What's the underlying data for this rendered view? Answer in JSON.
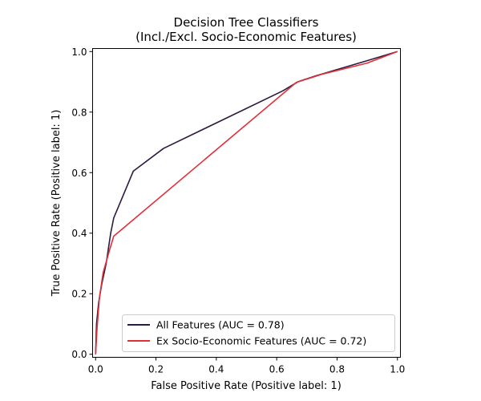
{
  "chart_data": {
    "type": "line",
    "title": "Decision Tree Classifiers",
    "subtitle": "(Incl./Excl. Socio-Economic Features)",
    "xlabel": "False Positive Rate (Positive label: 1)",
    "ylabel": "True Positive Rate (Positive label: 1)",
    "xlim": [
      -0.01,
      1.01
    ],
    "ylim": [
      -0.01,
      1.01
    ],
    "xticks": [
      "0.0",
      "0.2",
      "0.4",
      "0.6",
      "0.8",
      "1.0"
    ],
    "yticks": [
      "0.0",
      "0.2",
      "0.4",
      "0.6",
      "0.8",
      "1.0"
    ],
    "grid": false,
    "legend_position": "lower-right",
    "series": [
      {
        "name": "All Features (AUC = 0.78)",
        "color": "#2d1a40",
        "x": [
          0.0,
          0.003,
          0.01,
          0.02,
          0.035,
          0.05,
          0.06,
          0.125,
          0.225,
          0.62,
          0.67,
          0.73,
          0.9,
          1.0
        ],
        "y": [
          0.0,
          0.1,
          0.17,
          0.23,
          0.3,
          0.4,
          0.45,
          0.605,
          0.68,
          0.87,
          0.9,
          0.92,
          0.97,
          1.0
        ]
      },
      {
        "name": "Ex Socio-Economic Features (AUC = 0.72)",
        "color": "#e0313b",
        "x": [
          0.0,
          0.005,
          0.013,
          0.025,
          0.045,
          0.06,
          0.665,
          0.75,
          0.9,
          1.0
        ],
        "y": [
          0.0,
          0.09,
          0.19,
          0.27,
          0.34,
          0.39,
          0.898,
          0.925,
          0.962,
          1.0
        ]
      }
    ]
  }
}
